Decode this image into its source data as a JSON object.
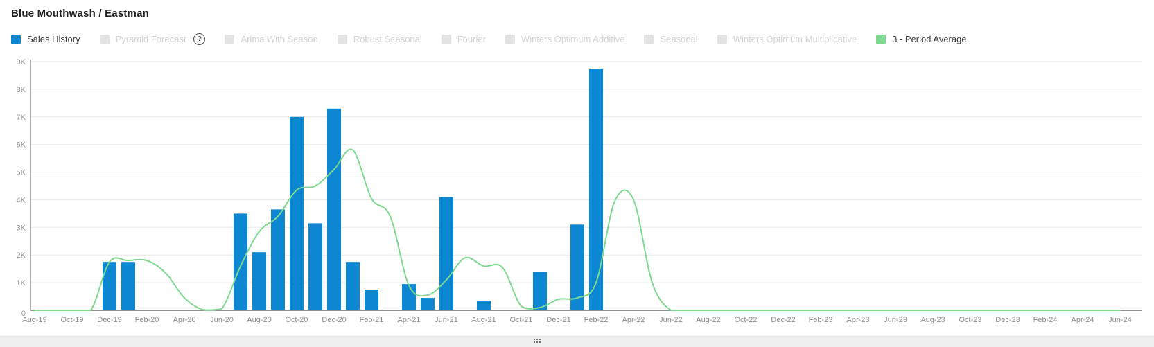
{
  "header": {
    "title": "Blue Mouthwash / Eastman"
  },
  "legend": {
    "help_icon": "?",
    "items": [
      {
        "label": "Sales History",
        "swatch": "#0d87d2",
        "enabled": true,
        "help": false
      },
      {
        "label": "Pyramid Forecast",
        "swatch": "#e3e3e3",
        "enabled": false,
        "help": true
      },
      {
        "label": "Arima With Season",
        "swatch": "#e3e3e3",
        "enabled": false,
        "help": false
      },
      {
        "label": "Robust Seasonal",
        "swatch": "#e3e3e3",
        "enabled": false,
        "help": false
      },
      {
        "label": "Fourier",
        "swatch": "#e3e3e3",
        "enabled": false,
        "help": false
      },
      {
        "label": "Winters Optimum Additive",
        "swatch": "#e3e3e3",
        "enabled": false,
        "help": false
      },
      {
        "label": "Seasonal",
        "swatch": "#e3e3e3",
        "enabled": false,
        "help": false
      },
      {
        "label": "Winters Optimum Multiplicative",
        "swatch": "#e3e3e3",
        "enabled": false,
        "help": false
      },
      {
        "label": "3 - Period Average",
        "swatch": "#7ed98e",
        "enabled": true,
        "help": false
      }
    ]
  },
  "chart_data": {
    "type": "bar",
    "title": "Blue Mouthwash / Eastman",
    "xlabel": "",
    "ylabel": "",
    "ylim": [
      0,
      9000
    ],
    "grid": "horizontal",
    "legend_position": "top",
    "y_tick_labels": [
      "0",
      "1K",
      "2K",
      "3K",
      "4K",
      "5K",
      "6K",
      "7K",
      "8K",
      "9K"
    ],
    "x_tick_every": 2,
    "months": [
      "Aug-19",
      "Sep-19",
      "Oct-19",
      "Nov-19",
      "Dec-19",
      "Jan-20",
      "Feb-20",
      "Mar-20",
      "Apr-20",
      "May-20",
      "Jun-20",
      "Jul-20",
      "Aug-20",
      "Sep-20",
      "Oct-20",
      "Nov-20",
      "Dec-20",
      "Jan-21",
      "Feb-21",
      "Mar-21",
      "Apr-21",
      "May-21",
      "Jun-21",
      "Jul-21",
      "Aug-21",
      "Sep-21",
      "Oct-21",
      "Nov-21",
      "Dec-21",
      "Jan-22",
      "Feb-22",
      "Mar-22",
      "Apr-22",
      "May-22",
      "Jun-22",
      "Jul-22",
      "Aug-22",
      "Sep-22",
      "Oct-22",
      "Nov-22",
      "Dec-22",
      "Jan-23",
      "Feb-23",
      "Mar-23",
      "Apr-23",
      "May-23",
      "Jun-23",
      "Jul-23",
      "Aug-23",
      "Sep-23",
      "Oct-23",
      "Nov-23",
      "Dec-23",
      "Jan-24",
      "Feb-24",
      "Mar-24",
      "Apr-24",
      "May-24",
      "Jun-24"
    ],
    "series": [
      {
        "name": "Sales History",
        "type": "bar",
        "color": "#0d87d2",
        "points": [
          {
            "month": "Dec-19",
            "index": 4,
            "value": 1750
          },
          {
            "month": "Jan-20",
            "index": 5,
            "value": 1750
          },
          {
            "month": "Jul-20",
            "index": 11,
            "value": 3500
          },
          {
            "month": "Aug-20",
            "index": 12,
            "value": 2100
          },
          {
            "month": "Sep-20",
            "index": 13,
            "value": 3650
          },
          {
            "month": "Oct-20",
            "index": 14,
            "value": 7000
          },
          {
            "month": "Nov-20",
            "index": 15,
            "value": 3150
          },
          {
            "month": "Dec-20",
            "index": 16,
            "value": 7300
          },
          {
            "month": "Jan-21",
            "index": 17,
            "value": 1750
          },
          {
            "month": "Feb-21",
            "index": 18,
            "value": 750
          },
          {
            "month": "Apr-21",
            "index": 20,
            "value": 950
          },
          {
            "month": "May-21",
            "index": 21,
            "value": 450
          },
          {
            "month": "Jun-21",
            "index": 22,
            "value": 4100
          },
          {
            "month": "Aug-21",
            "index": 24,
            "value": 350
          },
          {
            "month": "Nov-21",
            "index": 27,
            "value": 1400
          },
          {
            "month": "Jan-22",
            "index": 29,
            "value": 3100
          },
          {
            "month": "Feb-22",
            "index": 30,
            "value": 8750
          }
        ]
      },
      {
        "name": "3 - Period Average",
        "type": "line",
        "color": "#7ed98e",
        "values": [
          0,
          0,
          0,
          0,
          1750,
          1800,
          1800,
          1350,
          450,
          20,
          60,
          1600,
          2850,
          3400,
          4350,
          4500,
          5100,
          5800,
          4050,
          3400,
          900,
          550,
          1100,
          1900,
          1600,
          1550,
          150,
          100,
          400,
          450,
          1000,
          3950,
          4000,
          1000,
          0,
          0,
          0,
          0,
          0,
          0,
          0,
          0,
          0,
          0,
          0,
          0,
          0,
          0,
          0,
          0,
          0,
          0,
          0,
          0,
          0,
          0,
          0,
          0,
          0
        ]
      }
    ]
  },
  "theme": {
    "grid_color": "#e8e8e8",
    "axis_color": "#707070",
    "y_axis_line_color": "#8a8a8a",
    "tick_label_color": "#8f8f8f",
    "bottom_bar_color": "#f0f0f0"
  }
}
